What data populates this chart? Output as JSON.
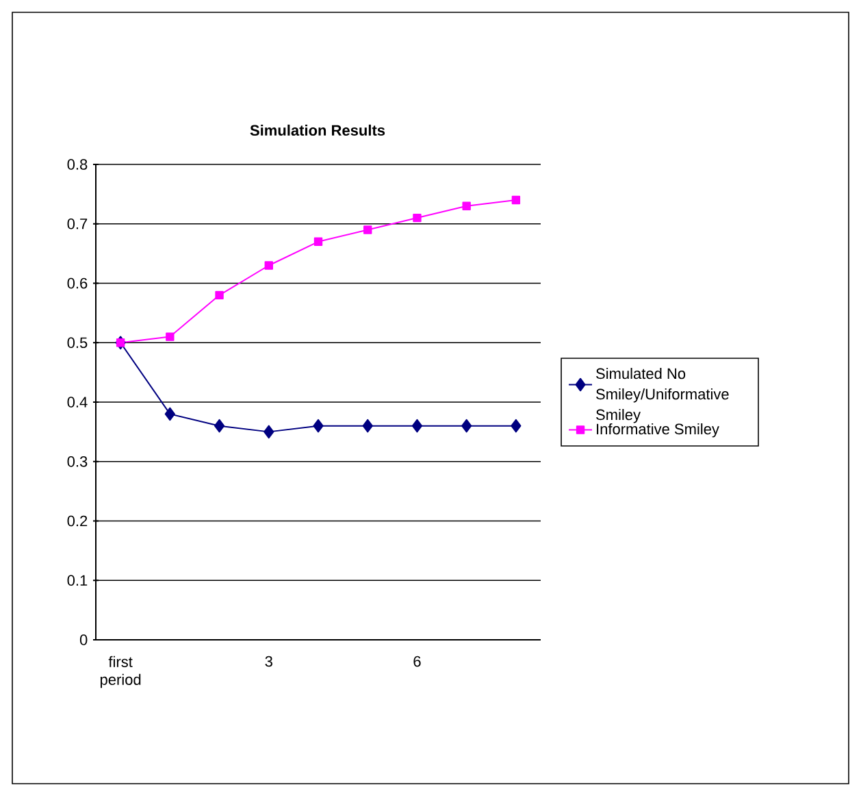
{
  "chart_data": {
    "type": "line",
    "title": "Simulation Results",
    "categories": [
      "first period",
      null,
      null,
      "3",
      null,
      null,
      "6",
      null,
      null
    ],
    "series": [
      {
        "name": "Simulated No Smiley/Uniformative Smiley",
        "color": "#000080",
        "marker": "diamond",
        "values": [
          0.5,
          0.38,
          0.36,
          0.35,
          0.36,
          0.36,
          0.36,
          0.36,
          0.36
        ]
      },
      {
        "name": "Informative Smiley",
        "color": "#ff00ff",
        "marker": "square",
        "values": [
          0.5,
          0.51,
          0.58,
          0.63,
          0.67,
          0.69,
          0.71,
          0.73,
          0.74
        ]
      }
    ],
    "ylim": [
      0,
      0.8
    ],
    "yticks": [
      0,
      0.1,
      0.2,
      0.3,
      0.4,
      0.5,
      0.6,
      0.7,
      0.8
    ],
    "grid": "y",
    "legend": "right"
  }
}
